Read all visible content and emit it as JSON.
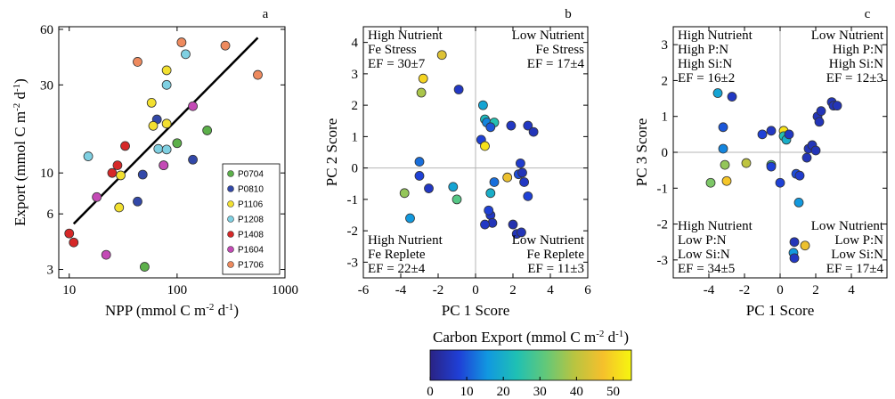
{
  "chart_data": [
    {
      "type": "scatter",
      "panel": "a",
      "xlabel": "NPP (mmol C m⁻² d⁻¹)",
      "ylabel": "Export (mmol C m⁻² d⁻¹)",
      "x_scale": "log",
      "y_scale": "log",
      "xlim": [
        8,
        1000
      ],
      "ylim": [
        2.7,
        62
      ],
      "x_ticks": [
        10,
        100,
        1000
      ],
      "x_tick_labels": [
        "10",
        "100",
        "1000"
      ],
      "y_ticks": [
        3,
        6,
        10,
        30,
        60
      ],
      "y_tick_labels": [
        "3",
        "6",
        "10",
        "30",
        "60"
      ],
      "fit_line": {
        "x": [
          11,
          560
        ],
        "y": [
          5.3,
          54
        ]
      },
      "legend_position": "lower-right",
      "series": [
        {
          "name": "P0704",
          "color": "#5cb04a",
          "points": [
            [
              50,
              3.1
            ],
            [
              100,
              14.5
            ],
            [
              190,
              17.0
            ]
          ]
        },
        {
          "name": "P0810",
          "color": "#3248a8",
          "points": [
            [
              43,
              7.0
            ],
            [
              48,
              9.8
            ],
            [
              65,
              19.5
            ],
            [
              75,
              11.0
            ],
            [
              140,
              11.8
            ]
          ]
        },
        {
          "name": "P1106",
          "color": "#f2e030",
          "points": [
            [
              29,
              6.5
            ],
            [
              30,
              9.7
            ],
            [
              58,
              24.0
            ],
            [
              60,
              18.0
            ],
            [
              80,
              36.0
            ],
            [
              80,
              18.5
            ]
          ]
        },
        {
          "name": "P1208",
          "color": "#7fd0e2",
          "points": [
            [
              15,
              12.3
            ],
            [
              67,
              13.5
            ],
            [
              80,
              30.0
            ],
            [
              80,
              13.4
            ],
            [
              120,
              44.0
            ]
          ]
        },
        {
          "name": "P1408",
          "color": "#d62828",
          "points": [
            [
              10,
              4.7
            ],
            [
              11,
              4.2
            ],
            [
              25,
              10.0
            ],
            [
              28,
              11.0
            ],
            [
              33,
              14.0
            ]
          ]
        },
        {
          "name": "P1604",
          "color": "#c44ab6",
          "points": [
            [
              18,
              7.4
            ],
            [
              22,
              3.6
            ],
            [
              75,
              11.0
            ],
            [
              140,
              23.0
            ]
          ]
        },
        {
          "name": "P1706",
          "color": "#ee8a5e",
          "points": [
            [
              43,
              40.0
            ],
            [
              110,
              51.0
            ],
            [
              280,
              49.0
            ],
            [
              560,
              34.0
            ]
          ]
        }
      ]
    },
    {
      "type": "scatter",
      "panel": "b",
      "xlabel": "PC 1 Score",
      "ylabel": "PC 2 Score",
      "xlim": [
        -6,
        6
      ],
      "ylim": [
        -3.5,
        4.5
      ],
      "x_ticks": [
        -6,
        -4,
        -2,
        0,
        2,
        4,
        6
      ],
      "y_ticks": [
        -3,
        -2,
        -1,
        0,
        1,
        2,
        3,
        4
      ],
      "color_variable": "Carbon Export (mmol C m⁻² d⁻¹)",
      "quadrant_labels": [
        [
          "High Nutrient",
          "Fe Stress",
          "EF = 30±7"
        ],
        [
          "Low Nutrient",
          "Fe Stress",
          "EF = 17±4"
        ],
        [
          "High Nutrient",
          "Fe Replete",
          "EF = 22±4"
        ],
        [
          "Low Nutrient",
          "Fe Replete",
          "EF = 11±3"
        ]
      ],
      "points": [
        [
          -1.8,
          3.6,
          44
        ],
        [
          -2.8,
          2.85,
          50
        ],
        [
          -2.9,
          2.4,
          38
        ],
        [
          -0.9,
          2.5,
          6
        ],
        [
          0.4,
          2.0,
          18
        ],
        [
          0.5,
          1.55,
          22
        ],
        [
          0.6,
          1.45,
          14
        ],
        [
          1.0,
          1.45,
          24
        ],
        [
          0.8,
          1.3,
          10
        ],
        [
          1.9,
          1.35,
          6
        ],
        [
          2.8,
          1.35,
          6
        ],
        [
          3.1,
          1.15,
          5
        ],
        [
          0.3,
          0.9,
          8
        ],
        [
          0.5,
          0.7,
          52
        ],
        [
          -3.0,
          0.2,
          12
        ],
        [
          -3.0,
          -0.25,
          8
        ],
        [
          -2.5,
          -0.65,
          6
        ],
        [
          -3.8,
          -0.8,
          36
        ],
        [
          -1.0,
          -1.0,
          30
        ],
        [
          -1.2,
          -0.6,
          18
        ],
        [
          0.8,
          -0.8,
          20
        ],
        [
          1.0,
          -0.45,
          12
        ],
        [
          1.7,
          -0.3,
          46
        ],
        [
          2.3,
          -0.2,
          9
        ],
        [
          2.4,
          0.15,
          7
        ],
        [
          2.5,
          -0.15,
          5
        ],
        [
          2.6,
          -0.45,
          6
        ],
        [
          2.8,
          -0.9,
          8
        ],
        [
          0.8,
          -1.5,
          6
        ],
        [
          0.9,
          -1.75,
          5
        ],
        [
          0.5,
          -1.8,
          6
        ],
        [
          2.0,
          -1.8,
          4
        ],
        [
          2.2,
          -2.1,
          5
        ],
        [
          2.45,
          -2.05,
          5
        ],
        [
          -3.5,
          -1.6,
          16
        ],
        [
          0.7,
          -1.35,
          8
        ]
      ]
    },
    {
      "type": "scatter",
      "panel": "c",
      "xlabel": "PC 1 Score",
      "ylabel": "PC 3 Score",
      "xlim": [
        -6,
        6
      ],
      "ylim": [
        -3.5,
        3.5
      ],
      "x_ticks": [
        -4,
        -2,
        0,
        2,
        4
      ],
      "y_ticks": [
        -3,
        -2,
        -1,
        0,
        1,
        2,
        3
      ],
      "color_variable": "Carbon Export (mmol C m⁻² d⁻¹)",
      "quadrant_labels": [
        [
          "High Nutrient",
          "High P:N",
          "High Si:N",
          "EF = 16±2"
        ],
        [
          "Low Nutrient",
          "High P:N",
          "High Si:N",
          "EF = 12±3"
        ],
        [
          "High Nutrient",
          "Low P:N",
          "Low Si:N",
          "EF = 34±5"
        ],
        [
          "Low Nutrient",
          "Low P:N",
          "Low Si:N",
          "EF = 17±4"
        ]
      ],
      "points": [
        [
          -3.5,
          1.65,
          18
        ],
        [
          -2.7,
          1.55,
          6
        ],
        [
          -3.2,
          0.7,
          10
        ],
        [
          -3.2,
          0.1,
          14
        ],
        [
          -1.0,
          0.5,
          8
        ],
        [
          -0.5,
          0.6,
          6
        ],
        [
          0.2,
          0.6,
          52
        ],
        [
          0.2,
          0.45,
          24
        ],
        [
          0.35,
          0.35,
          20
        ],
        [
          0.5,
          0.5,
          6
        ],
        [
          -3.1,
          -0.35,
          36
        ],
        [
          -3.9,
          -0.85,
          34
        ],
        [
          -3.0,
          -0.8,
          48
        ],
        [
          -1.9,
          -0.3,
          40
        ],
        [
          -0.5,
          -0.35,
          30
        ],
        [
          -0.5,
          -0.4,
          8
        ],
        [
          0,
          -0.85,
          8
        ],
        [
          0.9,
          -0.6,
          9
        ],
        [
          1.1,
          -0.65,
          7
        ],
        [
          1.05,
          -1.4,
          16
        ],
        [
          1.5,
          -0.15,
          5
        ],
        [
          1.6,
          0.1,
          5
        ],
        [
          1.8,
          0.2,
          5
        ],
        [
          2.0,
          0.05,
          5
        ],
        [
          2.1,
          1.0,
          5
        ],
        [
          2.2,
          0.85,
          5
        ],
        [
          2.3,
          1.15,
          5
        ],
        [
          2.9,
          1.4,
          5
        ],
        [
          3.0,
          1.3,
          5
        ],
        [
          3.2,
          1.3,
          5
        ],
        [
          0.8,
          -2.5,
          5
        ],
        [
          0.75,
          -2.8,
          16
        ],
        [
          0.8,
          -2.95,
          6
        ],
        [
          1.4,
          -2.6,
          46
        ]
      ]
    }
  ],
  "colorbar": {
    "label": "Carbon Export (mmol C m⁻² d⁻¹)",
    "ticks": [
      0,
      10,
      20,
      30,
      40,
      50
    ],
    "range": [
      0,
      55
    ],
    "stops": [
      "#2a2384",
      "#1f3fd6",
      "#1198e0",
      "#1fc0b4",
      "#61c87a",
      "#b8c441",
      "#f5c02c",
      "#f6f60f"
    ]
  }
}
